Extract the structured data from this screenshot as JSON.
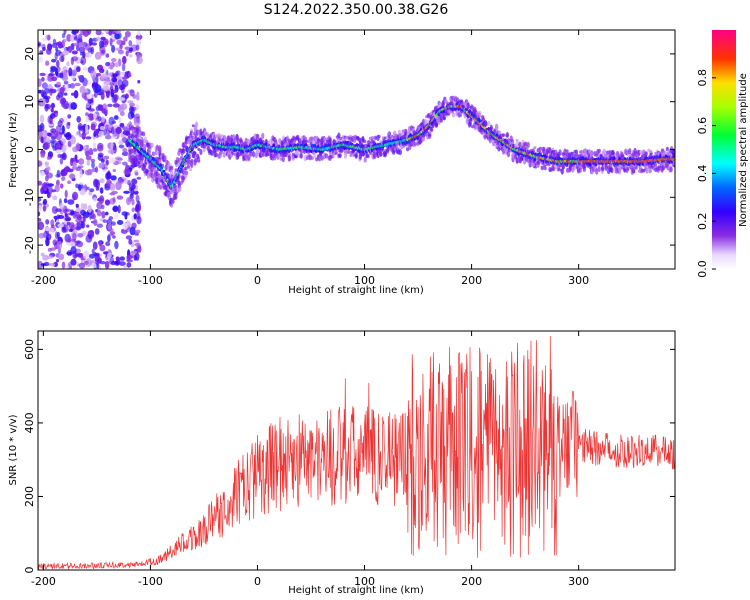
{
  "title": "S124.2022.350.00.38.G26",
  "chart_data": [
    {
      "type": "heatmap",
      "name": "spectrogram",
      "xlabel": "Height of straight line (km)",
      "ylabel": "Frequency (Hz)",
      "xlim": [
        -205,
        390
      ],
      "ylim": [
        -25,
        25
      ],
      "x_ticks": [
        -200,
        -100,
        0,
        100,
        200,
        300
      ],
      "y_ticks": [
        -20,
        -10,
        0,
        10,
        20
      ],
      "colorbar": {
        "label": "Normalized spectral amplitude",
        "range": [
          0,
          1
        ],
        "ticks": [
          "0.0",
          "0.2",
          "0.4",
          "0.6",
          "0.8"
        ],
        "colormap": "rainbow (purple → blue → cyan → green → yellow → red → pink)"
      },
      "ridge": {
        "x": [
          -120,
          -110,
          -100,
          -90,
          -80,
          -70,
          -60,
          -50,
          -40,
          -30,
          -20,
          -10,
          0,
          20,
          40,
          60,
          80,
          100,
          120,
          140,
          150,
          160,
          170,
          180,
          190,
          200,
          210,
          220,
          240,
          260,
          280,
          300,
          320,
          340,
          360,
          380,
          390
        ],
        "y": [
          2,
          0,
          -2,
          -4,
          -8,
          -3,
          1,
          2,
          1,
          0.5,
          0.5,
          0,
          1,
          0,
          0.5,
          0,
          1,
          0,
          1,
          2,
          3,
          5,
          8,
          9,
          9,
          7,
          5,
          3,
          0,
          -1.5,
          -2.5,
          -2.5,
          -2.5,
          -2.5,
          -2.5,
          -2,
          -2
        ]
      },
      "grid": false
    },
    {
      "type": "line",
      "name": "snr",
      "xlabel": "Height of straight line (km)",
      "ylabel": "SNR (10 * v/v)",
      "xlim": [
        -205,
        390
      ],
      "ylim": [
        0,
        650
      ],
      "x_ticks": [
        -200,
        -100,
        0,
        100,
        200,
        300
      ],
      "y_ticks": [
        0,
        200,
        400,
        600
      ],
      "color": "#ee3333",
      "envelope": {
        "x": [
          -205,
          -150,
          -110,
          -90,
          -70,
          -50,
          -30,
          -10,
          0,
          20,
          40,
          60,
          80,
          100,
          120,
          140,
          160,
          180,
          200,
          220,
          240,
          260,
          280,
          300,
          320,
          340,
          360,
          390
        ],
        "y": [
          10,
          12,
          15,
          30,
          70,
          110,
          170,
          230,
          260,
          290,
          300,
          305,
          310,
          310,
          310,
          310,
          315,
          320,
          320,
          320,
          330,
          330,
          340,
          340,
          330,
          325,
          325,
          320
        ]
      },
      "grid": false
    }
  ]
}
